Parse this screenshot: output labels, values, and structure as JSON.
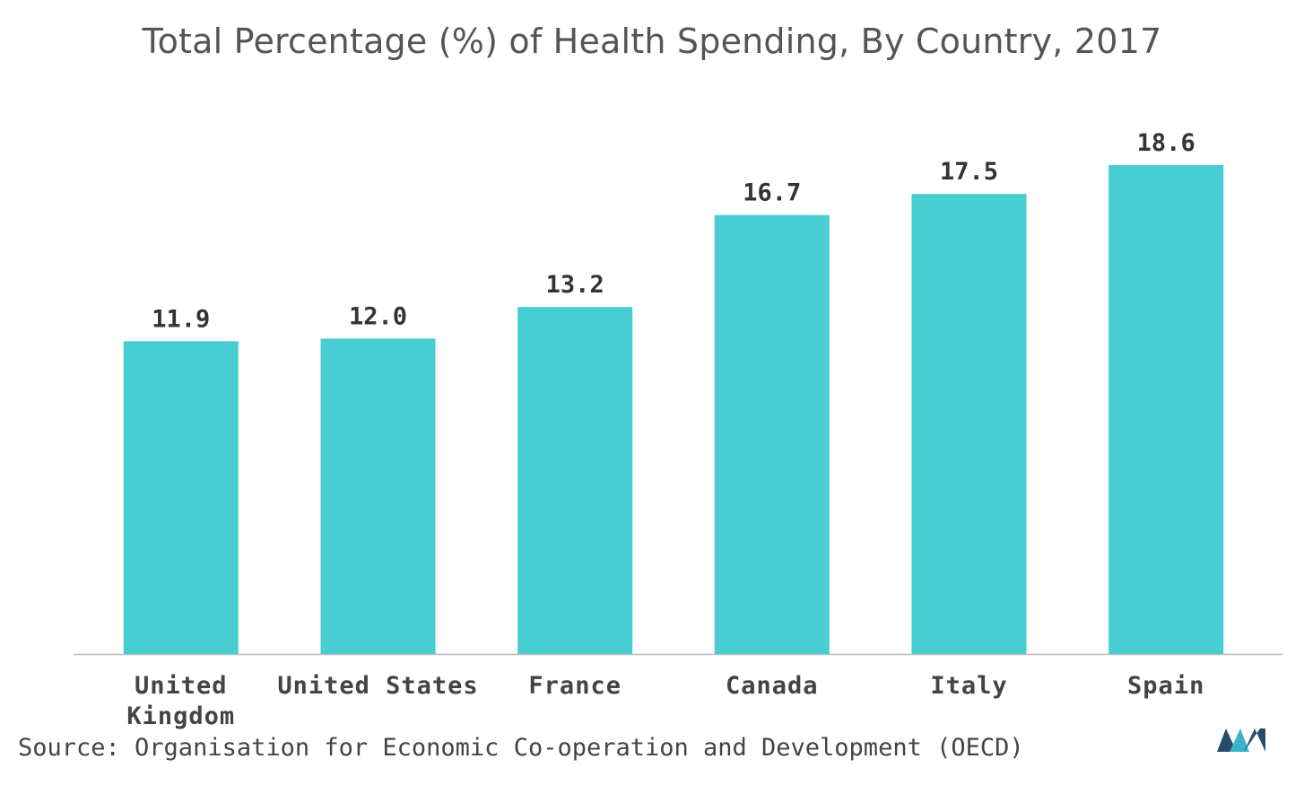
{
  "colors": {
    "bar": "#48CED2",
    "label": "#333333",
    "axis": "#BBBBBB",
    "logo_dark": "#2B4A6F",
    "logo_light": "#3BB5C9"
  },
  "chart_data": {
    "type": "bar",
    "title": "Total Percentage (%) of Health Spending, By Country, 2017",
    "categories": [
      [
        "United",
        "Kingdom"
      ],
      [
        "United States"
      ],
      [
        "France"
      ],
      [
        "Canada"
      ],
      [
        "Italy"
      ],
      [
        "Spain"
      ]
    ],
    "values": [
      11.9,
      12.0,
      13.2,
      16.7,
      17.5,
      18.6
    ],
    "value_labels": [
      "11.9",
      "12.0",
      "13.2",
      "16.7",
      "17.5",
      "18.6"
    ],
    "ylim": [
      0,
      22.8
    ],
    "y_axis_visible": false,
    "grid": false,
    "legend": "none"
  },
  "footer": {
    "source": "Source: Organisation for Economic Co-operation and Development (OECD)"
  },
  "logo": {
    "icon": "mordor-intelligence-logo-icon"
  }
}
